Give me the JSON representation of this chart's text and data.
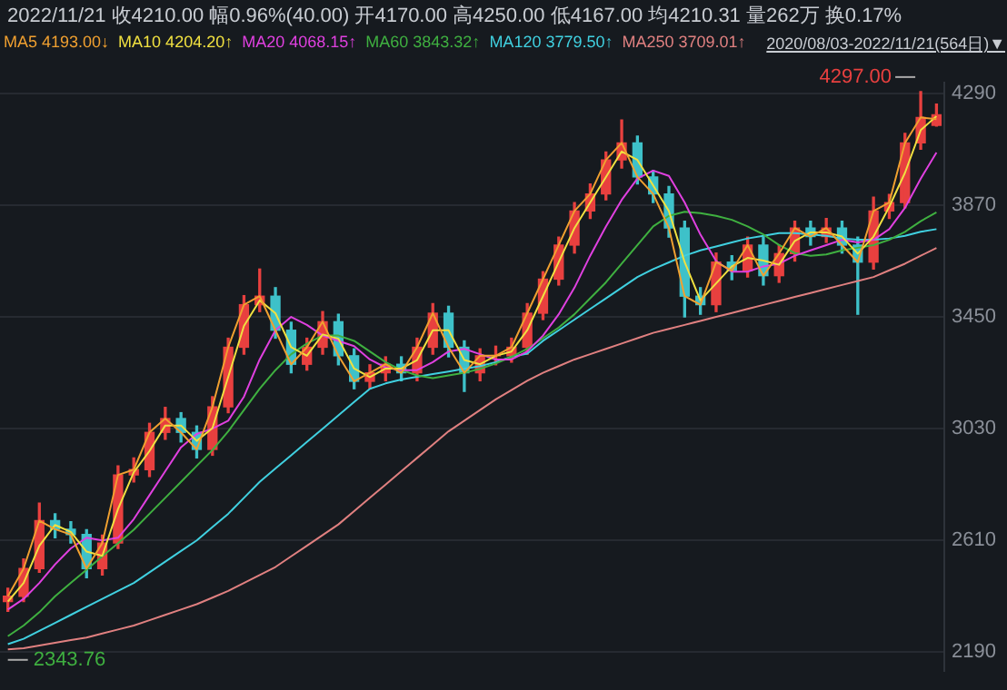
{
  "chart_data": {
    "type": "candlestick",
    "title": "2022/11/21 收4210.00 幅0.96%(40.00) 开4170.00 高4250.00 低4167.00 均4210.31 量262万 换0.17%",
    "categories": [
      null,
      null,
      null,
      null,
      null,
      null,
      null,
      null,
      null,
      null,
      null,
      null,
      null,
      null,
      null,
      null,
      null,
      null,
      null,
      null,
      null,
      null,
      null,
      null,
      null,
      null,
      null,
      null,
      null,
      null,
      null,
      null,
      null,
      null,
      null,
      null,
      null,
      null,
      null,
      null,
      null,
      null,
      null,
      null,
      null,
      null,
      null,
      null,
      null,
      null,
      null,
      null,
      null,
      null,
      null,
      null,
      null,
      null,
      null,
      null
    ],
    "ohlc": [
      [
        2380,
        2430,
        2343.76,
        2400
      ],
      [
        2400,
        2540,
        2380,
        2504
      ],
      [
        2504,
        2750,
        2490,
        2684
      ],
      [
        2684,
        2710,
        2620,
        2652
      ],
      [
        2652,
        2680,
        2600,
        2632
      ],
      [
        2632,
        2650,
        2470,
        2504
      ],
      [
        2504,
        2630,
        2480,
        2600
      ],
      [
        2600,
        2890,
        2580,
        2856
      ],
      [
        2856,
        2920,
        2830,
        2876
      ],
      [
        2876,
        3050,
        2850,
        3016
      ],
      [
        3016,
        3110,
        2990,
        3068
      ],
      [
        3068,
        3090,
        2980,
        3016
      ],
      [
        3016,
        3040,
        2920,
        2952
      ],
      [
        2952,
        3150,
        2930,
        3112
      ],
      [
        3112,
        3370,
        3090,
        3336
      ],
      [
        3336,
        3530,
        3310,
        3496
      ],
      [
        3496,
        3630,
        3470,
        3528
      ],
      [
        3528,
        3560,
        3370,
        3400
      ],
      [
        3400,
        3430,
        3240,
        3272
      ],
      [
        3272,
        3370,
        3250,
        3336
      ],
      [
        3336,
        3470,
        3310,
        3432
      ],
      [
        3432,
        3460,
        3270,
        3304
      ],
      [
        3304,
        3330,
        3180,
        3208
      ],
      [
        3208,
        3270,
        3180,
        3240
      ],
      [
        3240,
        3300,
        3210,
        3272
      ],
      [
        3272,
        3300,
        3210,
        3240
      ],
      [
        3240,
        3370,
        3210,
        3336
      ],
      [
        3336,
        3500,
        3310,
        3464
      ],
      [
        3464,
        3490,
        3300,
        3336
      ],
      [
        3336,
        3360,
        3170,
        3240
      ],
      [
        3240,
        3330,
        3210,
        3304
      ],
      [
        3304,
        3340,
        3270,
        3304
      ],
      [
        3304,
        3370,
        3280,
        3336
      ],
      [
        3336,
        3500,
        3310,
        3464
      ],
      [
        3464,
        3620,
        3440,
        3592
      ],
      [
        3592,
        3750,
        3570,
        3720
      ],
      [
        3720,
        3880,
        3690,
        3848
      ],
      [
        3848,
        3950,
        3820,
        3912
      ],
      [
        3912,
        4070,
        3890,
        4040
      ],
      [
        4040,
        4190,
        4010,
        4104
      ],
      [
        4104,
        4130,
        3950,
        3976
      ],
      [
        3976,
        4000,
        3880,
        3912
      ],
      [
        3912,
        3940,
        3750,
        3784
      ],
      [
        3784,
        3810,
        3450,
        3528
      ],
      [
        3528,
        3560,
        3460,
        3496
      ],
      [
        3496,
        3690,
        3470,
        3656
      ],
      [
        3656,
        3680,
        3590,
        3624
      ],
      [
        3624,
        3750,
        3600,
        3720
      ],
      [
        3720,
        3750,
        3570,
        3605
      ],
      [
        3605,
        3720,
        3580,
        3688
      ],
      [
        3688,
        3810,
        3660,
        3784
      ],
      [
        3784,
        3810,
        3720,
        3752
      ],
      [
        3752,
        3820,
        3730,
        3784
      ],
      [
        3784,
        3810,
        3690,
        3720
      ],
      [
        3720,
        3750,
        3460,
        3656
      ],
      [
        3656,
        3900,
        3630,
        3848
      ],
      [
        3848,
        3910,
        3820,
        3880
      ],
      [
        3880,
        4140,
        3860,
        4104
      ],
      [
        4104,
        4297,
        4080,
        4200
      ],
      [
        4170,
        4250,
        4167,
        4210
      ]
    ],
    "colors": [
      "#e8403f",
      "#e8403f",
      "#e8403f",
      "#3ec1c9",
      "#3ec1c9",
      "#3ec1c9",
      "#e8403f",
      "#e8403f",
      "#e8403f",
      "#e8403f",
      "#e8403f",
      "#3ec1c9",
      "#3ec1c9",
      "#e8403f",
      "#e8403f",
      "#e8403f",
      "#e8403f",
      "#3ec1c9",
      "#3ec1c9",
      "#e8403f",
      "#e8403f",
      "#3ec1c9",
      "#3ec1c9",
      "#e8403f",
      "#e8403f",
      "#3ec1c9",
      "#e8403f",
      "#e8403f",
      "#3ec1c9",
      "#3ec1c9",
      "#e8403f",
      "#e8403f",
      "#e8403f",
      "#e8403f",
      "#e8403f",
      "#e8403f",
      "#e8403f",
      "#e8403f",
      "#e8403f",
      "#e8403f",
      "#3ec1c9",
      "#3ec1c9",
      "#3ec1c9",
      "#3ec1c9",
      "#3ec1c9",
      "#e8403f",
      "#3ec1c9",
      "#e8403f",
      "#3ec1c9",
      "#e8403f",
      "#e8403f",
      "#3ec1c9",
      "#e8403f",
      "#3ec1c9",
      "#3ec1c9",
      "#e8403f",
      "#e8403f",
      "#e8403f",
      "#e8403f",
      "#e8403f"
    ],
    "series": [
      {
        "name": "MA5 4193.00↓",
        "color": "#f0a030",
        "type": "line",
        "values": [
          2400,
          2504,
          2684,
          2652,
          2632,
          2504,
          2600,
          2856,
          2876,
          3016,
          3068,
          3016,
          2952,
          3112,
          3336,
          3496,
          3528,
          3400,
          3272,
          3336,
          3432,
          3304,
          3208,
          3240,
          3272,
          3240,
          3336,
          3464,
          3336,
          3240,
          3304,
          3304,
          3336,
          3464,
          3592,
          3720,
          3848,
          3912,
          4040,
          4104,
          3976,
          3912,
          3784,
          3528,
          3496,
          3656,
          3624,
          3720,
          3605,
          3688,
          3784,
          3752,
          3784,
          3720,
          3656,
          3848,
          3880,
          4104,
          4200,
          4193
        ]
      },
      {
        "name": "MA10 4204.20↑",
        "color": "#f0e040",
        "type": "line",
        "values": [
          2380,
          2450,
          2590,
          2668,
          2642,
          2568,
          2552,
          2728,
          2866,
          2946,
          3042,
          3042,
          2984,
          3032,
          3224,
          3416,
          3512,
          3464,
          3336,
          3304,
          3384,
          3368,
          3256,
          3224,
          3256,
          3256,
          3288,
          3400,
          3400,
          3288,
          3272,
          3304,
          3320,
          3400,
          3528,
          3656,
          3784,
          3880,
          3976,
          4072,
          4040,
          3944,
          3848,
          3656,
          3512,
          3576,
          3640,
          3672,
          3662,
          3646,
          3736,
          3768,
          3768,
          3752,
          3688,
          3752,
          3864,
          3992,
          4152,
          4204
        ]
      },
      {
        "name": "MA20 4068.15↑",
        "color": "#e040e0",
        "type": "line",
        "values": [
          2350,
          2390,
          2450,
          2520,
          2580,
          2620,
          2610,
          2620,
          2690,
          2780,
          2870,
          2960,
          3010,
          3030,
          3060,
          3150,
          3290,
          3400,
          3450,
          3420,
          3380,
          3360,
          3340,
          3290,
          3260,
          3250,
          3250,
          3280,
          3320,
          3330,
          3310,
          3290,
          3290,
          3320,
          3380,
          3460,
          3560,
          3680,
          3790,
          3890,
          3970,
          4000,
          3980,
          3880,
          3760,
          3660,
          3620,
          3620,
          3640,
          3650,
          3680,
          3700,
          3720,
          3740,
          3730,
          3740,
          3780,
          3860,
          3970,
          4068
        ]
      },
      {
        "name": "MA60 3843.32↑",
        "color": "#3fb040",
        "type": "line",
        "values": [
          2250,
          2290,
          2340,
          2400,
          2450,
          2500,
          2550,
          2600,
          2650,
          2710,
          2770,
          2830,
          2890,
          2950,
          3020,
          3100,
          3180,
          3250,
          3310,
          3350,
          3380,
          3380,
          3360,
          3320,
          3280,
          3250,
          3230,
          3220,
          3230,
          3240,
          3255,
          3275,
          3300,
          3330,
          3370,
          3410,
          3460,
          3520,
          3580,
          3650,
          3720,
          3790,
          3830,
          3845,
          3840,
          3830,
          3815,
          3790,
          3760,
          3720,
          3690,
          3680,
          3685,
          3700,
          3710,
          3720,
          3740,
          3770,
          3810,
          3843
        ]
      },
      {
        "name": "MA120 3779.50↑",
        "color": "#40d0e0",
        "type": "line",
        "values": [
          2220,
          2240,
          2270,
          2300,
          2330,
          2360,
          2390,
          2420,
          2450,
          2490,
          2530,
          2570,
          2610,
          2660,
          2710,
          2770,
          2830,
          2880,
          2930,
          2980,
          3030,
          3080,
          3130,
          3180,
          3200,
          3215,
          3225,
          3235,
          3245,
          3255,
          3265,
          3280,
          3300,
          3312,
          3360,
          3400,
          3440,
          3480,
          3520,
          3560,
          3600,
          3630,
          3655,
          3680,
          3700,
          3715,
          3730,
          3745,
          3755,
          3765,
          3765,
          3760,
          3755,
          3745,
          3740,
          3740,
          3745,
          3755,
          3770,
          3780
        ]
      },
      {
        "name": "MA250 3709.01↑",
        "color": "#e08080",
        "type": "line",
        "values": [
          2200,
          2205,
          2215,
          2225,
          2235,
          2245,
          2260,
          2275,
          2290,
          2310,
          2330,
          2350,
          2370,
          2395,
          2420,
          2450,
          2480,
          2510,
          2550,
          2590,
          2630,
          2670,
          2720,
          2770,
          2820,
          2870,
          2920,
          2970,
          3020,
          3060,
          3100,
          3140,
          3175,
          3210,
          3240,
          3265,
          3290,
          3310,
          3330,
          3350,
          3370,
          3390,
          3405,
          3420,
          3435,
          3450,
          3465,
          3480,
          3495,
          3510,
          3525,
          3540,
          3555,
          3570,
          3585,
          3600,
          3625,
          3650,
          3680,
          3709
        ]
      }
    ],
    "ylim": [
      2120,
      4330
    ],
    "yticks": [
      2190,
      2610,
      3030,
      3450,
      3870,
      4290
    ],
    "grid": "y",
    "legend": "top left",
    "tick_labels": "y",
    "annotations": [
      "2020/08/03-2022/11/21(564日)▼",
      "4297.00",
      "2343.76"
    ]
  }
}
